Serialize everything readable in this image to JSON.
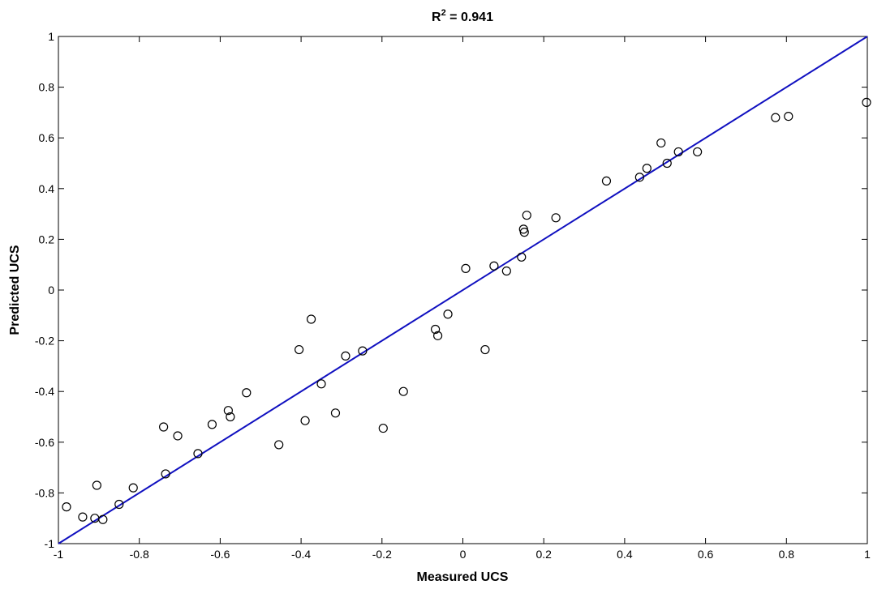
{
  "chart_data": {
    "type": "scatter",
    "title": {
      "base": "R",
      "superscript": "2",
      "rest": " = 0.941"
    },
    "xlabel": "Measured UCS",
    "ylabel": "Predicted UCS",
    "xlim": [
      -1,
      1
    ],
    "ylim": [
      -1,
      1
    ],
    "xticks": [
      -1,
      -0.8,
      -0.6,
      -0.4,
      -0.2,
      0,
      0.2,
      0.4,
      0.6,
      0.8,
      1
    ],
    "yticks": [
      -1,
      -0.8,
      -0.6,
      -0.4,
      -0.2,
      0,
      0.2,
      0.4,
      0.6,
      0.8,
      1
    ],
    "xtick_labels": [
      "-1",
      "-0.8",
      "-0.6",
      "-0.4",
      "-0.2",
      "0",
      "0.2",
      "0.4",
      "0.6",
      "0.8",
      "1"
    ],
    "ytick_labels": [
      "-1",
      "-0.8",
      "-0.6",
      "-0.4",
      "-0.2",
      "0",
      "0.2",
      "0.4",
      "0.6",
      "0.8",
      "1"
    ],
    "grid": false,
    "legend": "none",
    "colors": {
      "marker": "#000000",
      "fit_line": "#1010c0",
      "axes": "#000000"
    },
    "fit_line": {
      "x": [
        -1,
        1
      ],
      "y": [
        -1,
        1
      ]
    },
    "x": [
      -0.98,
      -0.94,
      -0.91,
      -0.905,
      -0.89,
      -0.85,
      -0.815,
      -0.74,
      -0.735,
      -0.705,
      -0.655,
      -0.62,
      -0.58,
      -0.575,
      -0.535,
      -0.455,
      -0.405,
      -0.39,
      -0.375,
      -0.35,
      -0.315,
      -0.29,
      -0.248,
      -0.197,
      -0.147,
      -0.068,
      -0.062,
      -0.037,
      0.007,
      0.055,
      0.077,
      0.108,
      0.145,
      0.15,
      0.152,
      0.158,
      0.23,
      0.355,
      0.437,
      0.455,
      0.49,
      0.505,
      0.533,
      0.58,
      0.773,
      0.805,
      0.998
    ],
    "y": [
      -0.855,
      -0.895,
      -0.9,
      -0.77,
      -0.905,
      -0.845,
      -0.78,
      -0.54,
      -0.725,
      -0.575,
      -0.645,
      -0.53,
      -0.475,
      -0.5,
      -0.405,
      -0.61,
      -0.235,
      -0.515,
      -0.115,
      -0.37,
      -0.485,
      -0.26,
      -0.24,
      -0.545,
      -0.4,
      -0.155,
      -0.18,
      -0.095,
      0.085,
      -0.235,
      0.095,
      0.075,
      0.13,
      0.24,
      0.228,
      0.295,
      0.285,
      0.43,
      0.445,
      0.48,
      0.58,
      0.5,
      0.545,
      0.545,
      0.68,
      0.685,
      0.74
    ]
  }
}
